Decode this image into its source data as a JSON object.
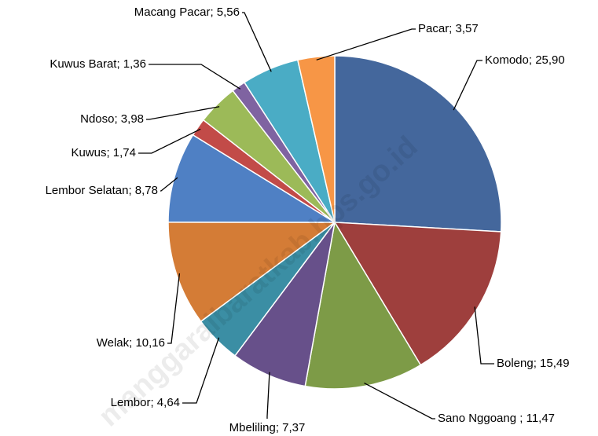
{
  "chart_data": {
    "type": "pie",
    "watermark": "manggaraibaratkab.bps.go.id",
    "series": [
      {
        "values": [
          25.9,
          15.49,
          11.47,
          7.37,
          4.64,
          10.16,
          8.78,
          1.74,
          3.98,
          1.36,
          5.56,
          3.57
        ],
        "value_labels": [
          "Komodo; 25,90",
          "Boleng; 15,49",
          "Sano Nggoang ; 11,47",
          "Mbeliling; 7,37",
          "Lembor; 4,64",
          "Welak; 10,16",
          "Lembor Selatan; 8,78",
          "Kuwus; 1,74",
          "Ndoso; 3,98",
          "Kuwus Barat; 1,36",
          "Macang Pacar; 5,56",
          "Pacar; 3,57"
        ],
        "colors": [
          "#44679c",
          "#9e3f3d",
          "#7d9b47",
          "#67508a",
          "#3b8ea4",
          "#d47c36",
          "#4f80c4",
          "#c24b48",
          "#9cba58",
          "#7f63a1",
          "#4aacc5",
          "#f79646"
        ]
      }
    ]
  }
}
